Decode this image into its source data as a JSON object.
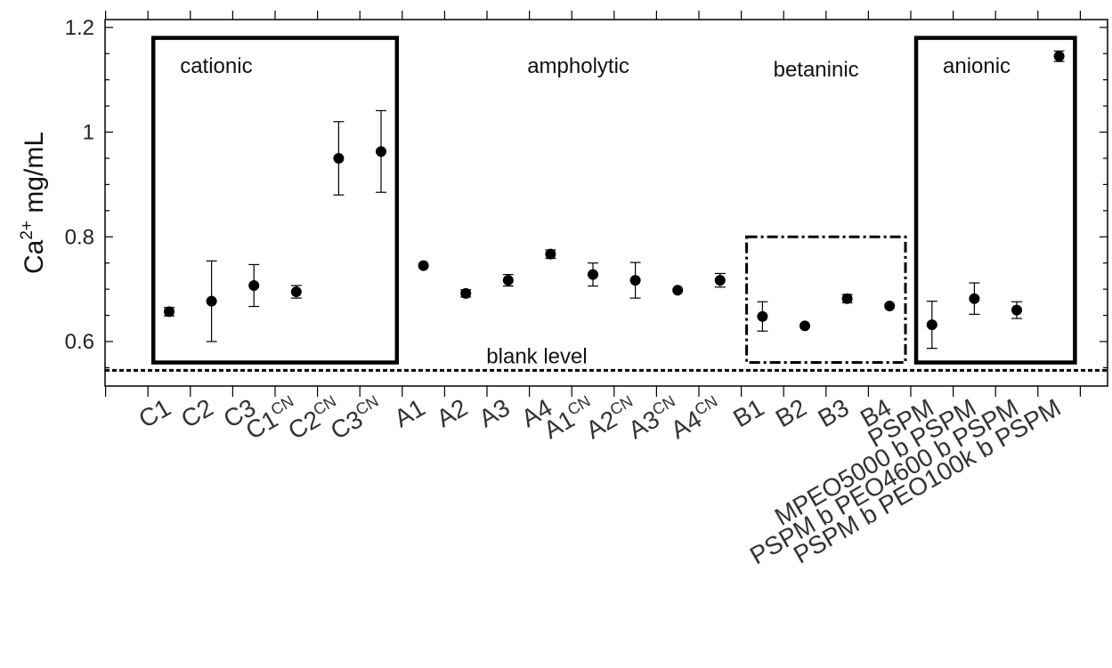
{
  "chart_data": {
    "type": "scatter",
    "ylabel_base": "Ca",
    "ylabel_sup": "2+",
    "ylabel_rest": " mg/mL",
    "xlabel": "",
    "ylim": [
      0.515,
      1.215
    ],
    "yticks": [
      0.6,
      0.8,
      1.0,
      1.2
    ],
    "ytick_labels": [
      "0.6",
      "0.8",
      "1",
      "1.2"
    ],
    "grid": false,
    "categories": [
      {
        "base": "C1",
        "sup": ""
      },
      {
        "base": "C2",
        "sup": ""
      },
      {
        "base": "C3",
        "sup": ""
      },
      {
        "base": "C1",
        "sup": "CN"
      },
      {
        "base": "C2",
        "sup": "CN"
      },
      {
        "base": "C3",
        "sup": "CN"
      },
      {
        "base": "A1",
        "sup": ""
      },
      {
        "base": "A2",
        "sup": ""
      },
      {
        "base": "A3",
        "sup": ""
      },
      {
        "base": "A4",
        "sup": ""
      },
      {
        "base": "A1",
        "sup": "CN"
      },
      {
        "base": "A2",
        "sup": "CN"
      },
      {
        "base": "A3",
        "sup": "CN"
      },
      {
        "base": "A4",
        "sup": "CN"
      },
      {
        "base": "B1",
        "sup": ""
      },
      {
        "base": "B2",
        "sup": ""
      },
      {
        "base": "B3",
        "sup": ""
      },
      {
        "base": "B4",
        "sup": ""
      },
      {
        "base": "PSPM",
        "sup": ""
      },
      {
        "base": "MPEO5000 b PSPM",
        "sup": ""
      },
      {
        "base": "PSPM b PEO4600 b PSPM",
        "sup": ""
      },
      {
        "base": "PSPM b PEO100k b PSPM",
        "sup": ""
      }
    ],
    "values": [
      0.657,
      0.677,
      0.707,
      0.695,
      0.95,
      0.963,
      0.745,
      0.692,
      0.717,
      0.767,
      0.728,
      0.717,
      0.698,
      0.717,
      0.648,
      0.63,
      0.682,
      0.668,
      0.632,
      0.682,
      0.66,
      1.145
    ],
    "errors": [
      0.008,
      0.077,
      0.04,
      0.012,
      0.07,
      0.078,
      0.004,
      0.007,
      0.011,
      0.008,
      0.022,
      0.034,
      0.006,
      0.013,
      0.028,
      0.004,
      0.008,
      0.004,
      0.045,
      0.03,
      0.016,
      0.01
    ],
    "reference_line": {
      "label": "blank level",
      "value": 0.545
    },
    "groups": [
      {
        "label": "cationic",
        "from": 0,
        "to": 5,
        "ytop": 1.18,
        "ybottom": 0.56,
        "boxed": true,
        "dashed": false
      },
      {
        "label": "ampholytic",
        "from": 6,
        "to": 13,
        "boxed": false
      },
      {
        "label": "betaninic",
        "from": 14,
        "to": 17,
        "ytop": 0.8,
        "ybottom": 0.56,
        "boxed": true,
        "dashed": true
      },
      {
        "label": "anionic",
        "from": 18,
        "to": 21,
        "ytop": 1.18,
        "ybottom": 0.56,
        "boxed": true,
        "dashed": false
      }
    ]
  }
}
